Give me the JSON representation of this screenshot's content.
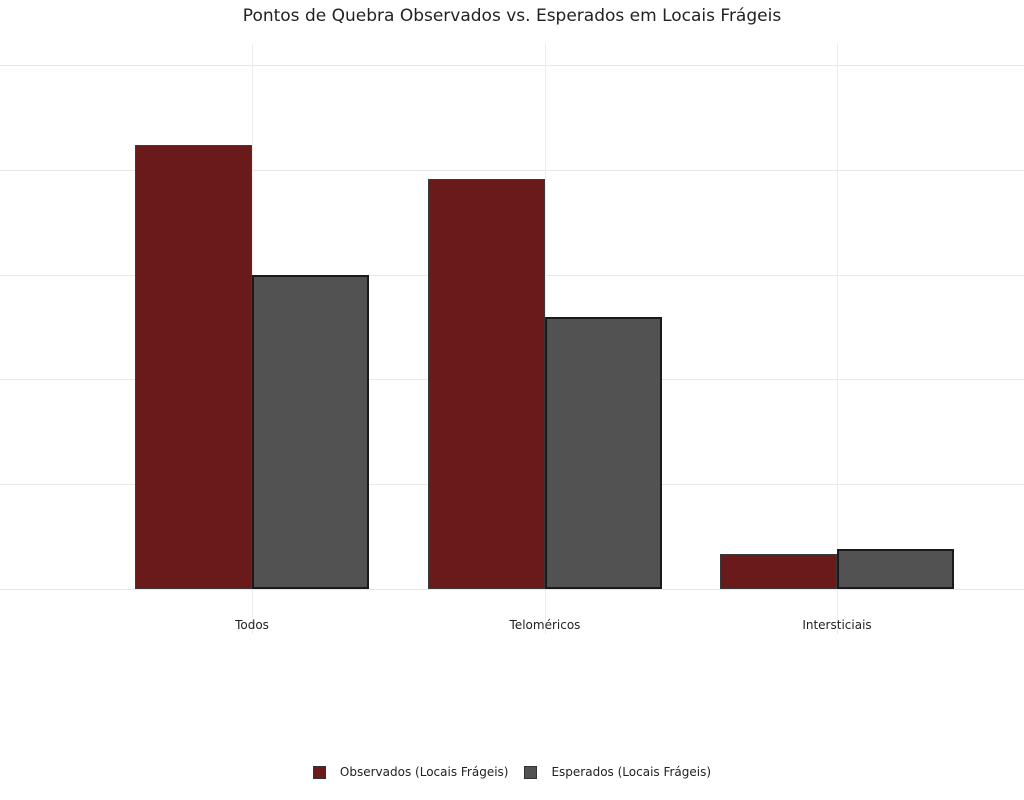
{
  "chart_data": {
    "type": "bar",
    "title": "Pontos de Quebra Observados vs. Esperados em Locais Frágeis",
    "xlabel": "",
    "ylabel": "",
    "categories": [
      "Todos",
      "Teloméricos",
      "Intersticiais"
    ],
    "series": [
      {
        "name": "Observados (Locais Frágeis)",
        "color": "#6b1a1c",
        "values": [
          4.24,
          3.91,
          0.33
        ]
      },
      {
        "name": "Esperados (Locais Frágeis)",
        "color": "#525252",
        "values": [
          3.0,
          2.6,
          0.38
        ]
      }
    ],
    "ylim": [
      0,
      5
    ],
    "y_tick_labels_visible": false,
    "grid": true,
    "legend_position": "bottom"
  },
  "legend": {
    "items": [
      {
        "label": "Observados (Locais Frágeis)",
        "color": "#6b1a1c"
      },
      {
        "label": "Esperados (Locais Frágeis)",
        "color": "#525252"
      }
    ]
  }
}
